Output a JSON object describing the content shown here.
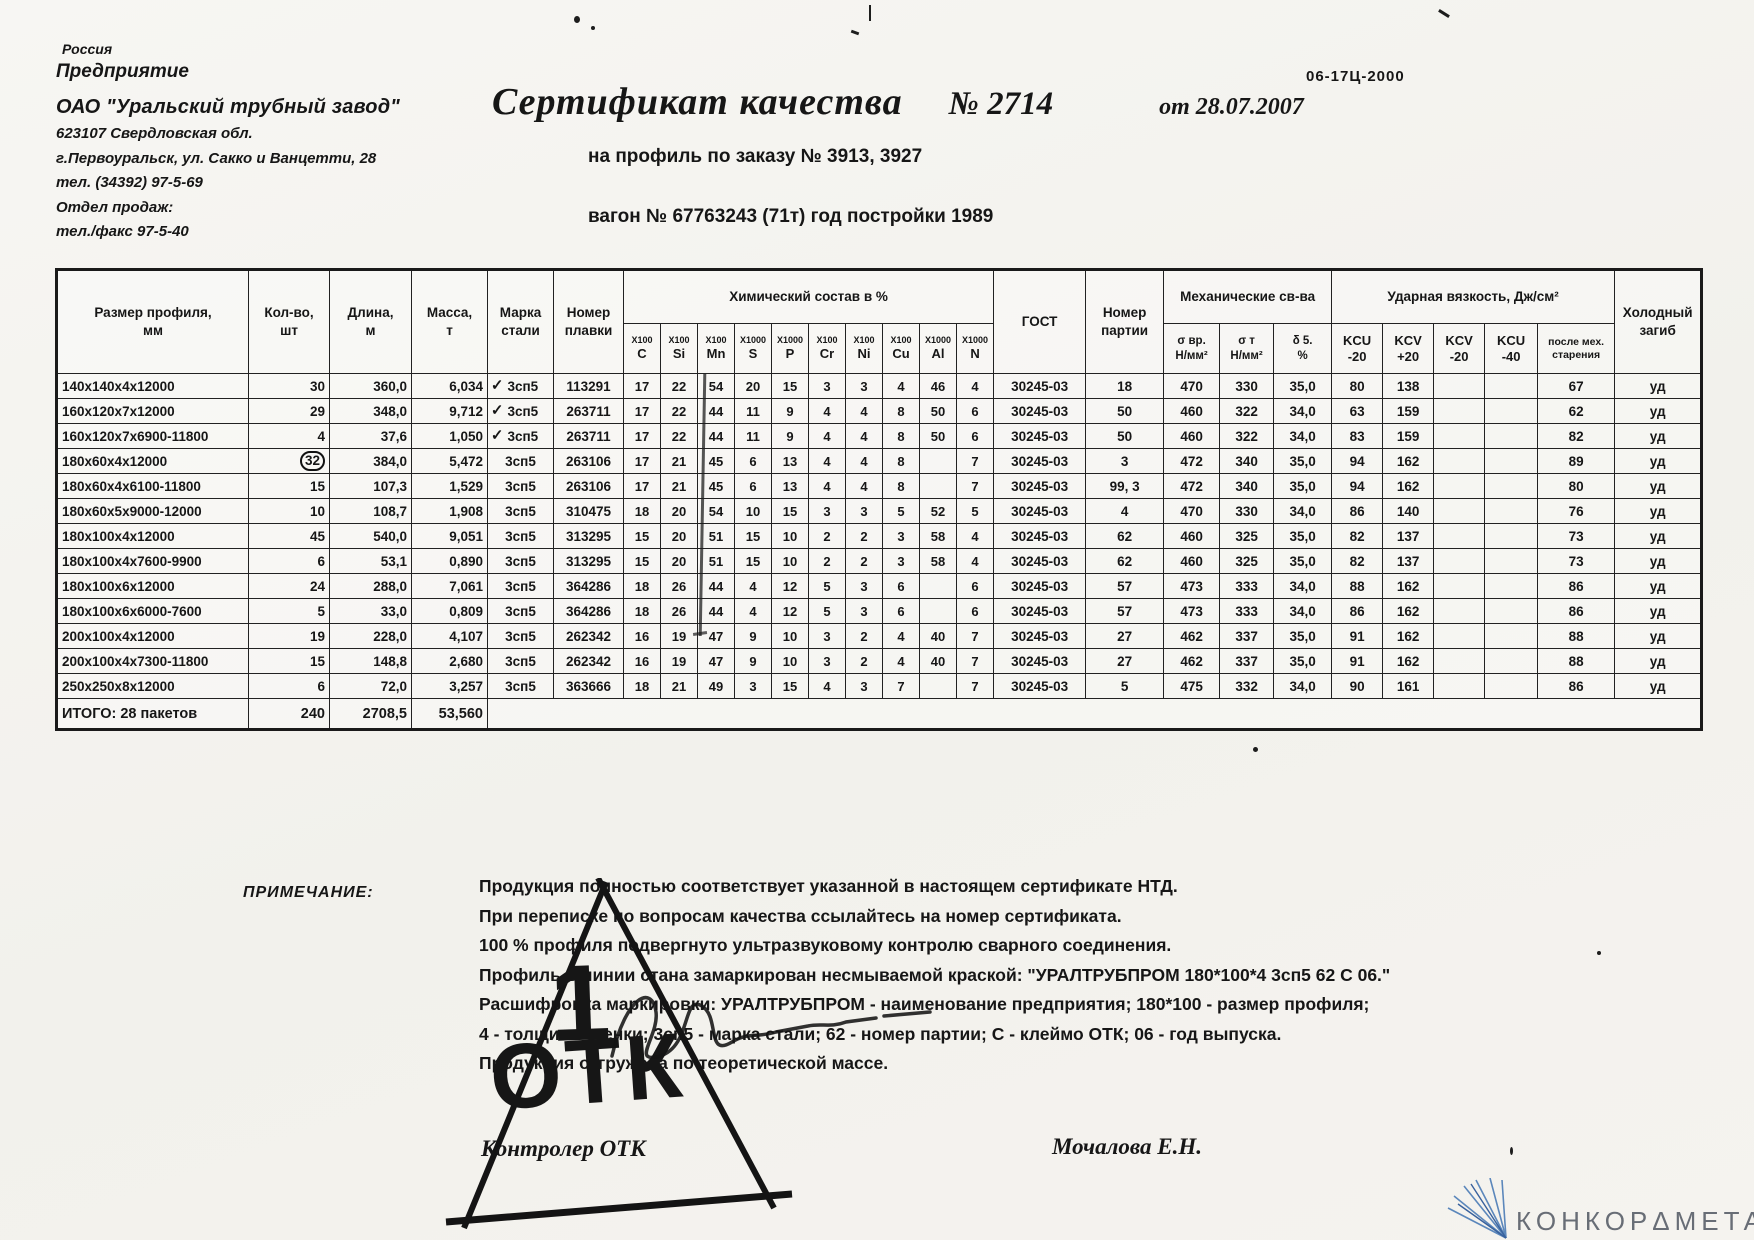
{
  "page": {
    "doc_code": "06-17Ц-2000"
  },
  "letterhead": {
    "country": "Россия",
    "enterprise_label": "Предприятие",
    "company": "ОАО \"Уральский трубный завод\"",
    "address1": "623107 Свердловская обл.",
    "address2": "г.Первоуральск, ул. Сакко и Ванцетти, 28",
    "phone": "тел. (34392) 97-5-69",
    "sales_dept": "Отдел продаж:",
    "fax": "тел./факс 97-5-40"
  },
  "title": {
    "main": "Сертификат качества",
    "number": "№ 2714",
    "date": "от 28.07.2007",
    "order_line": "на профиль по заказу № 3913, 3927",
    "wagon_line": "вагон № 67763243 (71т) год постройки 1989"
  },
  "table": {
    "col_headers": {
      "size": "Размер профиля,\nмм",
      "qty": "Кол-во,\nшт",
      "length": "Длина,\nм",
      "mass": "Масса,\nт",
      "grade": "Марка\nстали",
      "heat": "Номер\nплавки",
      "chem_group": "Химический состав в %",
      "gost": "ГОСТ",
      "batch": "Номер\nпартии",
      "mech_group": "Механические св-ва",
      "impact_group": "Ударная вязкость, Дж/см²",
      "bend": "Холодный\nзагиб"
    },
    "chem_cols": [
      {
        "factor": "Х100",
        "element": "C"
      },
      {
        "factor": "Х100",
        "element": "Si"
      },
      {
        "factor": "Х100",
        "element": "Mn"
      },
      {
        "factor": "Х1000",
        "element": "S"
      },
      {
        "factor": "Х1000",
        "element": "P"
      },
      {
        "factor": "Х100",
        "element": "Cr"
      },
      {
        "factor": "Х100",
        "element": "Ni"
      },
      {
        "factor": "Х100",
        "element": "Cu"
      },
      {
        "factor": "Х1000",
        "element": "Al"
      },
      {
        "factor": "Х1000",
        "element": "N"
      }
    ],
    "mech_cols": [
      "σ вр.\nН/мм²",
      "σ т\nН/мм²",
      "δ 5.\n%"
    ],
    "impact_cols": [
      "KCU\n-20",
      "KCV\n+20",
      "KCV\n-20",
      "KCU\n-40",
      "после мех.\nстарения"
    ],
    "rows": [
      {
        "size": "140x140x4x12000",
        "qty": "30",
        "qty_circled": false,
        "length": "360,0",
        "mass": "6,034",
        "check": true,
        "grade": "3сп5",
        "heat": "113291",
        "chem": [
          "17",
          "22",
          "54",
          "20",
          "15",
          "3",
          "3",
          "4",
          "46",
          "4"
        ],
        "gost": "30245-03",
        "batch": "18",
        "sigma_v": "470",
        "sigma_t": "330",
        "delta": "35,0",
        "kcu_m20": "80",
        "kcv_p20": "138",
        "kcv_m20": "",
        "kcu_m40": "",
        "aging": "67",
        "bend": "уд"
      },
      {
        "size": "160x120x7x12000",
        "qty": "29",
        "qty_circled": false,
        "length": "348,0",
        "mass": "9,712",
        "check": true,
        "grade": "3сп5",
        "heat": "263711",
        "chem": [
          "17",
          "22",
          "44",
          "11",
          "9",
          "4",
          "4",
          "8",
          "50",
          "6"
        ],
        "gost": "30245-03",
        "batch": "50",
        "sigma_v": "460",
        "sigma_t": "322",
        "delta": "34,0",
        "kcu_m20": "63",
        "kcv_p20": "159",
        "kcv_m20": "",
        "kcu_m40": "",
        "aging": "62",
        "bend": "уд"
      },
      {
        "size": "160x120x7x6900-11800",
        "qty": "4",
        "qty_circled": false,
        "length": "37,6",
        "mass": "1,050",
        "check": true,
        "grade": "3сп5",
        "heat": "263711",
        "chem": [
          "17",
          "22",
          "44",
          "11",
          "9",
          "4",
          "4",
          "8",
          "50",
          "6"
        ],
        "gost": "30245-03",
        "batch": "50",
        "sigma_v": "460",
        "sigma_t": "322",
        "delta": "34,0",
        "kcu_m20": "83",
        "kcv_p20": "159",
        "kcv_m20": "",
        "kcu_m40": "",
        "aging": "82",
        "bend": "уд"
      },
      {
        "size": "180x60x4x12000",
        "qty": "32",
        "qty_circled": true,
        "length": "384,0",
        "mass": "5,472",
        "check": false,
        "grade": "3сп5",
        "heat": "263106",
        "chem": [
          "17",
          "21",
          "45",
          "6",
          "13",
          "4",
          "4",
          "8",
          "",
          "7"
        ],
        "gost": "30245-03",
        "batch": "3",
        "sigma_v": "472",
        "sigma_t": "340",
        "delta": "35,0",
        "kcu_m20": "94",
        "kcv_p20": "162",
        "kcv_m20": "",
        "kcu_m40": "",
        "aging": "89",
        "bend": "уд"
      },
      {
        "size": "180x60x4x6100-11800",
        "qty": "15",
        "qty_circled": false,
        "length": "107,3",
        "mass": "1,529",
        "check": false,
        "grade": "3сп5",
        "heat": "263106",
        "chem": [
          "17",
          "21",
          "45",
          "6",
          "13",
          "4",
          "4",
          "8",
          "",
          "7"
        ],
        "gost": "30245-03",
        "batch": "99, 3",
        "sigma_v": "472",
        "sigma_t": "340",
        "delta": "35,0",
        "kcu_m20": "94",
        "kcv_p20": "162",
        "kcv_m20": "",
        "kcu_m40": "",
        "aging": "80",
        "bend": "уд"
      },
      {
        "size": "180x60x5x9000-12000",
        "qty": "10",
        "qty_circled": false,
        "length": "108,7",
        "mass": "1,908",
        "check": false,
        "grade": "3сп5",
        "heat": "310475",
        "chem": [
          "18",
          "20",
          "54",
          "10",
          "15",
          "3",
          "3",
          "5",
          "52",
          "5"
        ],
        "gost": "30245-03",
        "batch": "4",
        "sigma_v": "470",
        "sigma_t": "330",
        "delta": "34,0",
        "kcu_m20": "86",
        "kcv_p20": "140",
        "kcv_m20": "",
        "kcu_m40": "",
        "aging": "76",
        "bend": "уд"
      },
      {
        "size": "180x100x4x12000",
        "qty": "45",
        "qty_circled": false,
        "length": "540,0",
        "mass": "9,051",
        "check": false,
        "grade": "3сп5",
        "heat": "313295",
        "chem": [
          "15",
          "20",
          "51",
          "15",
          "10",
          "2",
          "2",
          "3",
          "58",
          "4"
        ],
        "gost": "30245-03",
        "batch": "62",
        "sigma_v": "460",
        "sigma_t": "325",
        "delta": "35,0",
        "kcu_m20": "82",
        "kcv_p20": "137",
        "kcv_m20": "",
        "kcu_m40": "",
        "aging": "73",
        "bend": "уд"
      },
      {
        "size": "180x100x4x7600-9900",
        "qty": "6",
        "qty_circled": false,
        "length": "53,1",
        "mass": "0,890",
        "check": false,
        "grade": "3сп5",
        "heat": "313295",
        "chem": [
          "15",
          "20",
          "51",
          "15",
          "10",
          "2",
          "2",
          "3",
          "58",
          "4"
        ],
        "gost": "30245-03",
        "batch": "62",
        "sigma_v": "460",
        "sigma_t": "325",
        "delta": "35,0",
        "kcu_m20": "82",
        "kcv_p20": "137",
        "kcv_m20": "",
        "kcu_m40": "",
        "aging": "73",
        "bend": "уд"
      },
      {
        "size": "180x100x6x12000",
        "qty": "24",
        "qty_circled": false,
        "length": "288,0",
        "mass": "7,061",
        "check": false,
        "grade": "3сп5",
        "heat": "364286",
        "chem": [
          "18",
          "26",
          "44",
          "4",
          "12",
          "5",
          "3",
          "6",
          "",
          "6"
        ],
        "gost": "30245-03",
        "batch": "57",
        "sigma_v": "473",
        "sigma_t": "333",
        "delta": "34,0",
        "kcu_m20": "88",
        "kcv_p20": "162",
        "kcv_m20": "",
        "kcu_m40": "",
        "aging": "86",
        "bend": "уд"
      },
      {
        "size": "180x100x6x6000-7600",
        "qty": "5",
        "qty_circled": false,
        "length": "33,0",
        "mass": "0,809",
        "check": false,
        "grade": "3сп5",
        "heat": "364286",
        "chem": [
          "18",
          "26",
          "44",
          "4",
          "12",
          "5",
          "3",
          "6",
          "",
          "6"
        ],
        "gost": "30245-03",
        "batch": "57",
        "sigma_v": "473",
        "sigma_t": "333",
        "delta": "34,0",
        "kcu_m20": "86",
        "kcv_p20": "162",
        "kcv_m20": "",
        "kcu_m40": "",
        "aging": "86",
        "bend": "уд"
      },
      {
        "size": "200x100x4x12000",
        "qty": "19",
        "qty_circled": false,
        "length": "228,0",
        "mass": "4,107",
        "check": false,
        "grade": "3сп5",
        "heat": "262342",
        "chem": [
          "16",
          "19",
          "47",
          "9",
          "10",
          "3",
          "2",
          "4",
          "40",
          "7"
        ],
        "gost": "30245-03",
        "batch": "27",
        "sigma_v": "462",
        "sigma_t": "337",
        "delta": "35,0",
        "kcu_m20": "91",
        "kcv_p20": "162",
        "kcv_m20": "",
        "kcu_m40": "",
        "aging": "88",
        "bend": "уд"
      },
      {
        "size": "200x100x4x7300-11800",
        "qty": "15",
        "qty_circled": false,
        "length": "148,8",
        "mass": "2,680",
        "check": false,
        "grade": "3сп5",
        "heat": "262342",
        "chem": [
          "16",
          "19",
          "47",
          "9",
          "10",
          "3",
          "2",
          "4",
          "40",
          "7"
        ],
        "gost": "30245-03",
        "batch": "27",
        "sigma_v": "462",
        "sigma_t": "337",
        "delta": "35,0",
        "kcu_m20": "91",
        "kcv_p20": "162",
        "kcv_m20": "",
        "kcu_m40": "",
        "aging": "88",
        "bend": "уд"
      },
      {
        "size": "250x250x8x12000",
        "qty": "6",
        "qty_circled": false,
        "length": "72,0",
        "mass": "3,257",
        "check": false,
        "grade": "3сп5",
        "heat": "363666",
        "chem": [
          "18",
          "21",
          "49",
          "3",
          "15",
          "4",
          "3",
          "7",
          "",
          "7"
        ],
        "gost": "30245-03",
        "batch": "5",
        "sigma_v": "475",
        "sigma_t": "332",
        "delta": "34,0",
        "kcu_m20": "90",
        "kcv_p20": "161",
        "kcv_m20": "",
        "kcu_m40": "",
        "aging": "86",
        "bend": "уд"
      }
    ],
    "totals": {
      "label": "ИТОГО: 28 пакетов",
      "qty": "240",
      "length": "2708,5",
      "mass": "53,560"
    }
  },
  "note": {
    "label": "ПРИМЕЧАНИЕ:",
    "lines": [
      "Продукция полностью соответствует указанной в настоящем сертификате НТД.",
      "При переписке по вопросам качества ссылайтесь на номер сертификата.",
      "100 % профиля подвергнуто ультразвуковому контролю сварного соединения.",
      "Профиль в линии стана замаркирован несмываемой краской: \"УРАЛТРУБПРОМ  180*100*4  3сп5  62  С  06.\"",
      "Расшифровка маркировки: УРАЛТРУБПРОМ - наименование предприятия; 180*100 - размер профиля;",
      "4 - толщина стенки; 3сп5 - марка стали; 62 - номер партии; С - клеймо ОТК; 06 - год выпуска.",
      "Продукция отгружена по теоретической массе."
    ]
  },
  "signatures": {
    "controller_label": "Контролер ОТК",
    "controller_name": "Мочалова Е.Н.",
    "stamp_number": "1",
    "stamp_text": "ОТК"
  },
  "logo": {
    "text": "КОНКОРΔМЕТАΛΛ"
  }
}
